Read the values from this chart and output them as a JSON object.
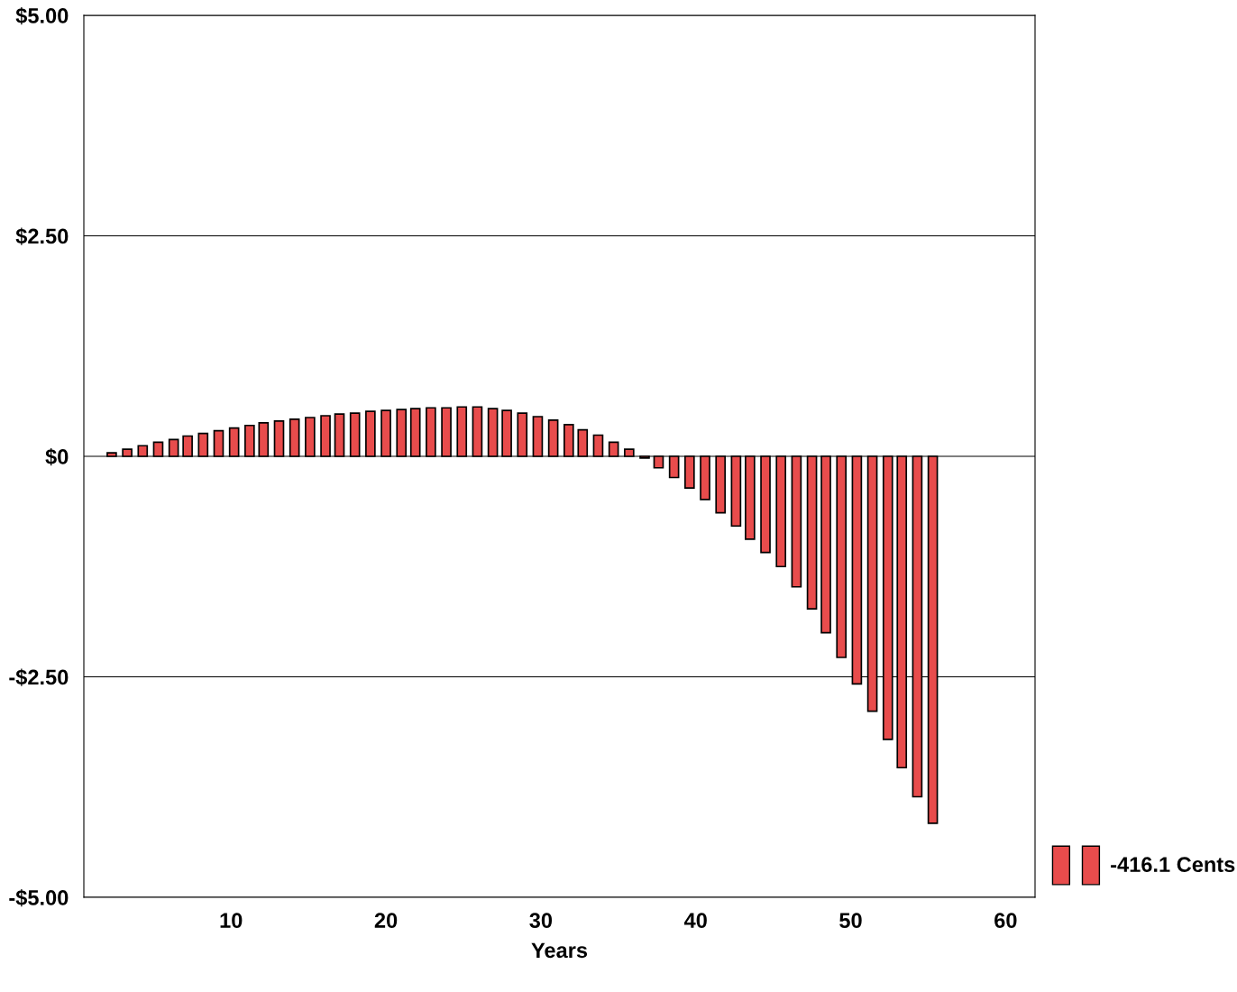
{
  "chart_data": {
    "type": "bar",
    "xlabel": "Years",
    "x": [
      2.3,
      3.3,
      4.3,
      5.3,
      6.3,
      7.2,
      8.2,
      9.2,
      10.2,
      11.2,
      12.1,
      13.1,
      14.1,
      15.1,
      16.1,
      17.0,
      18.0,
      19.0,
      20.0,
      21.0,
      21.9,
      22.9,
      23.9,
      24.9,
      25.9,
      26.9,
      27.8,
      28.8,
      29.8,
      30.8,
      31.8,
      32.7,
      33.7,
      34.7,
      35.7,
      36.7,
      37.6,
      38.6,
      39.6,
      40.6,
      41.6,
      42.6,
      43.5,
      44.5,
      45.5,
      46.5,
      47.5,
      48.4,
      49.4,
      50.4,
      51.4,
      52.4,
      53.3,
      54.3,
      55.3
    ],
    "series": [
      {
        "name": "-416.1 Cents",
        "color": "#e84c4c",
        "values": [
          0.04,
          0.08,
          0.12,
          0.16,
          0.19,
          0.23,
          0.26,
          0.29,
          0.32,
          0.35,
          0.38,
          0.4,
          0.42,
          0.44,
          0.46,
          0.48,
          0.49,
          0.51,
          0.52,
          0.53,
          0.54,
          0.55,
          0.55,
          0.56,
          0.56,
          0.54,
          0.52,
          0.49,
          0.45,
          0.41,
          0.36,
          0.3,
          0.24,
          0.16,
          0.08,
          -0.02,
          -0.13,
          -0.24,
          -0.36,
          -0.49,
          -0.64,
          -0.79,
          -0.94,
          -1.09,
          -1.25,
          -1.48,
          -1.73,
          -2.0,
          -2.28,
          -2.58,
          -2.89,
          -3.21,
          -3.53,
          -3.86,
          -4.161
        ]
      }
    ],
    "xlim": [
      0.5,
      61.9
    ],
    "xticks": [
      10,
      20,
      30,
      40,
      50,
      60
    ],
    "ylim": [
      -5,
      5
    ],
    "yticks": [
      {
        "value": -5,
        "label": "-$5.00"
      },
      {
        "value": -2.5,
        "label": "-$2.50"
      },
      {
        "value": 0,
        "label": "$0"
      },
      {
        "value": 2.5,
        "label": "$2.50"
      },
      {
        "value": 5,
        "label": "$5.00"
      }
    ],
    "grid": "y",
    "legend": "bottom right"
  }
}
